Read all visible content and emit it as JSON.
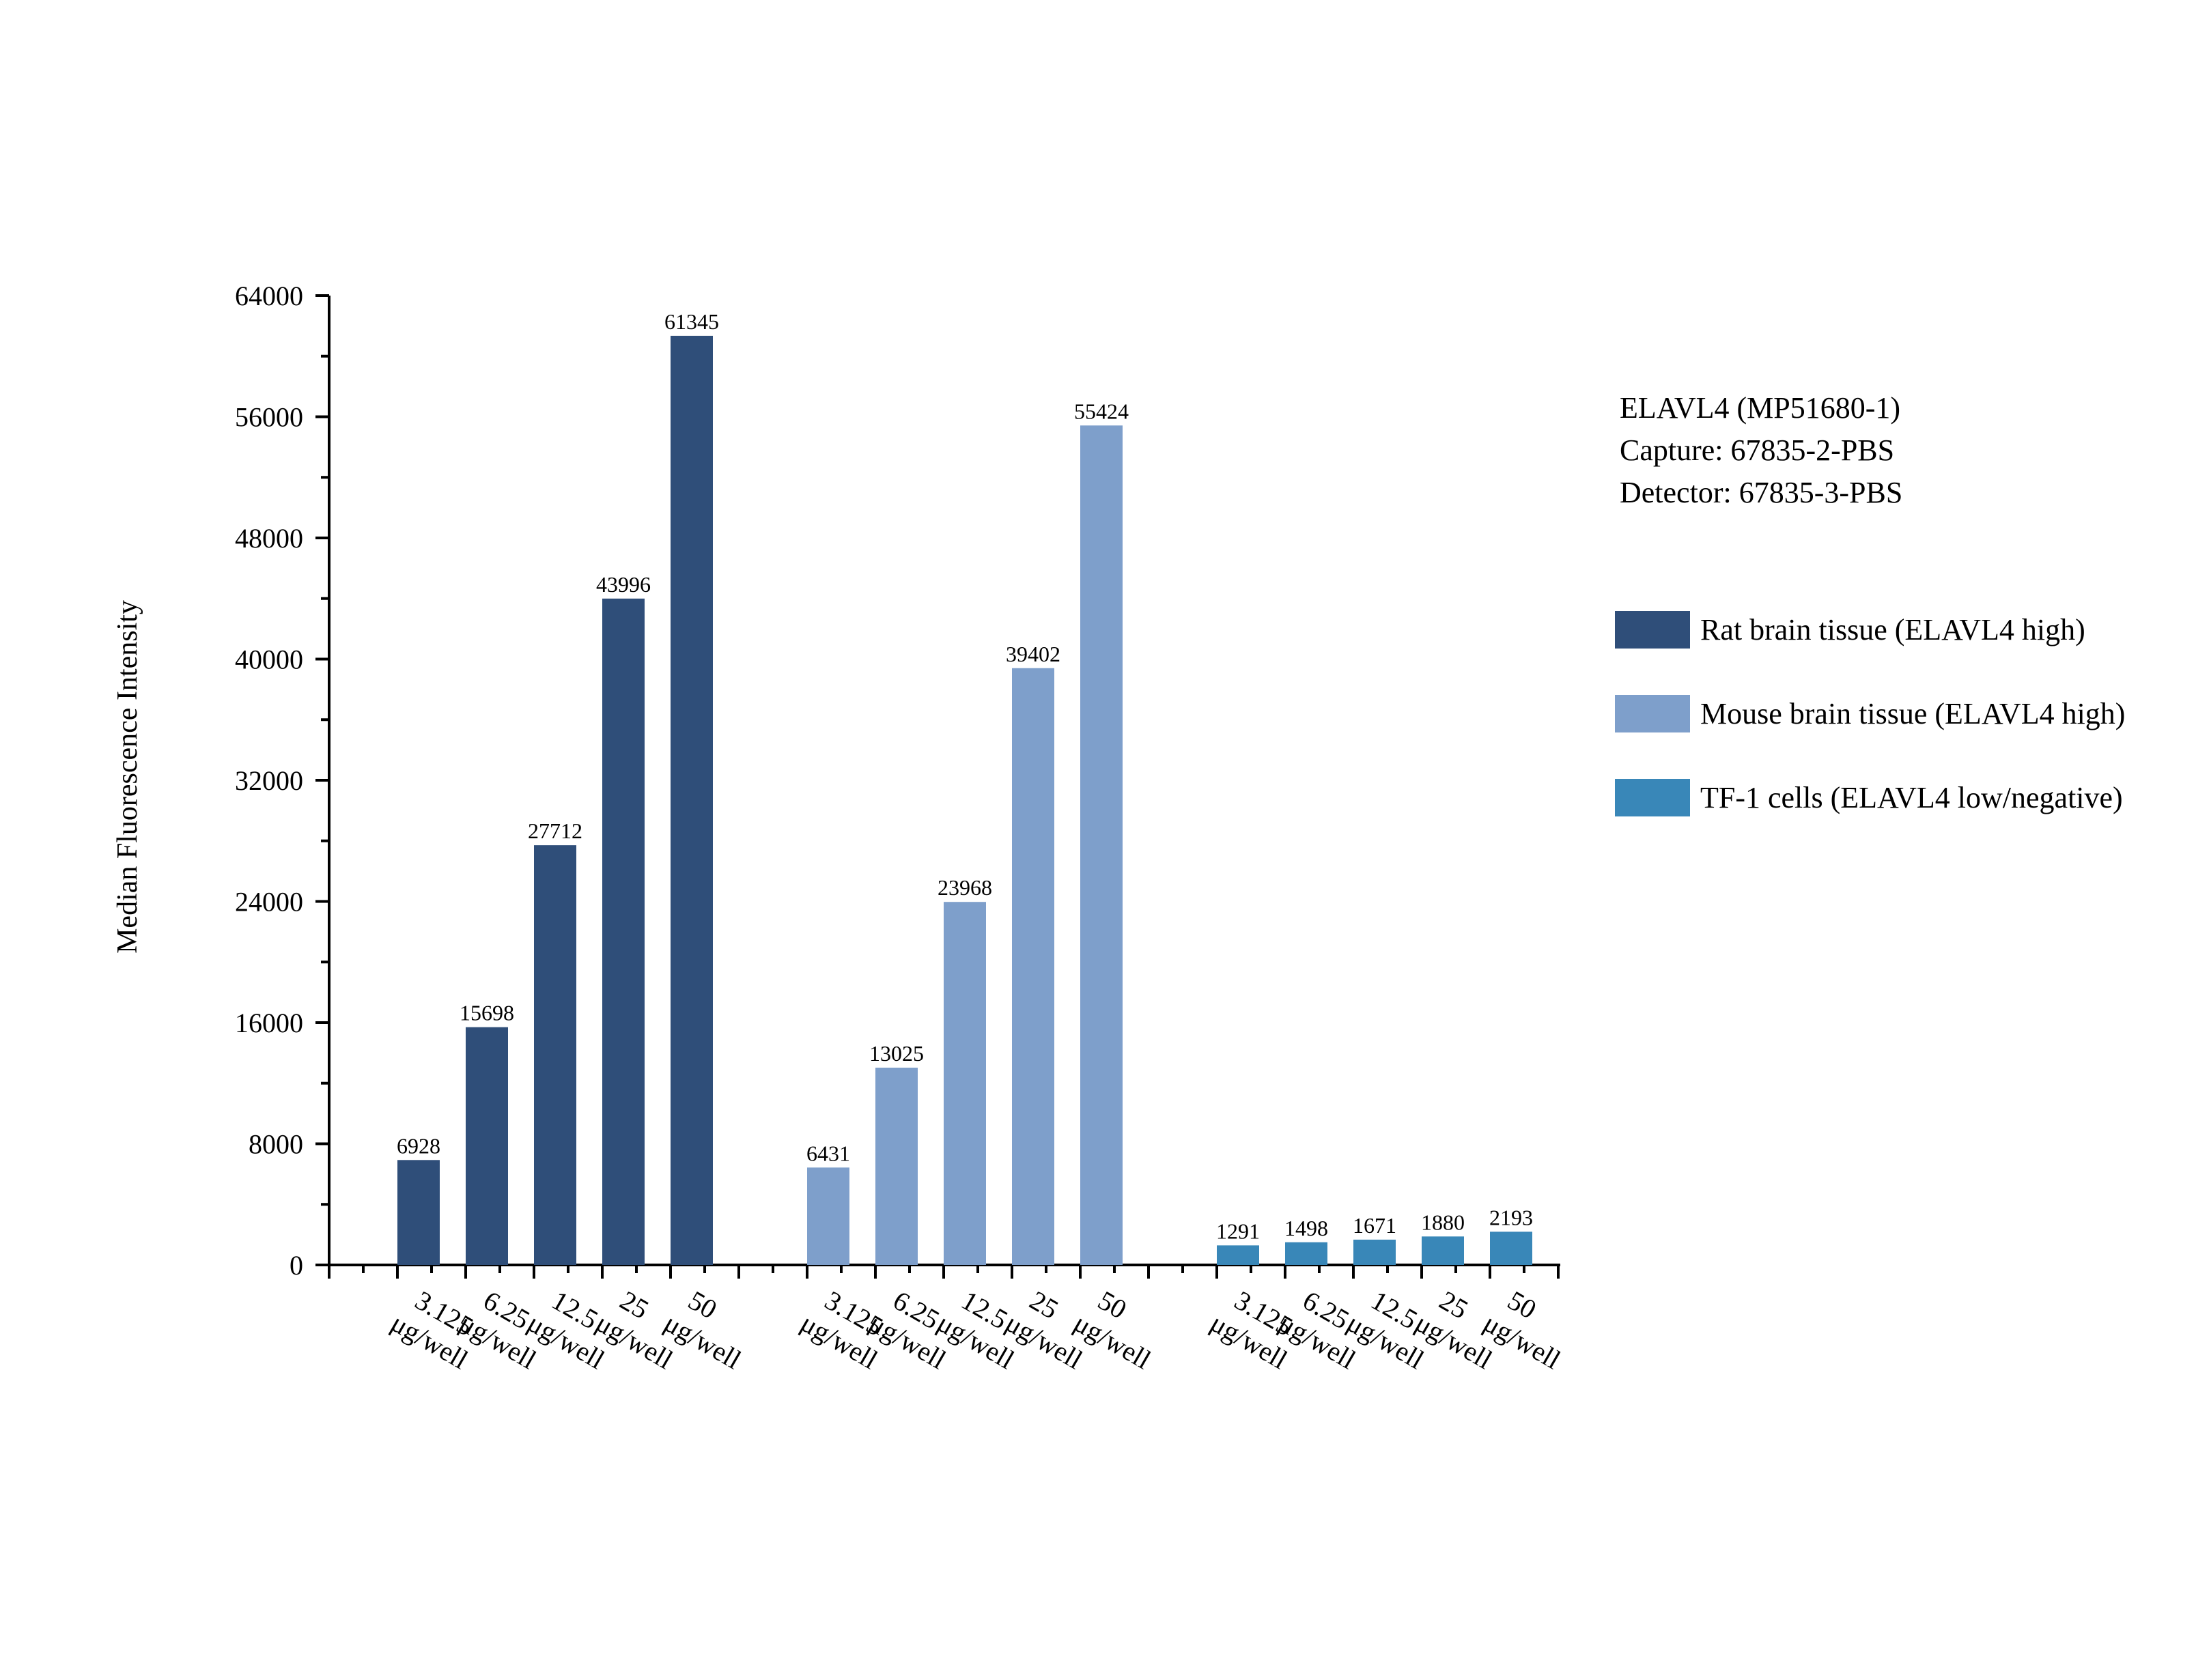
{
  "chart_data": {
    "type": "bar",
    "title": "",
    "ylabel": "Median Fluorescence Intensity",
    "xlabel": "",
    "ylim": [
      0,
      64000
    ],
    "yticks": [
      "0",
      "8000",
      "16000",
      "24000",
      "32000",
      "40000",
      "48000",
      "56000",
      "64000"
    ],
    "categories": [
      "3.125 μg/well",
      "6.25 μg/well",
      "12.5 μg/well",
      "25 μg/well",
      "50 μg/well"
    ],
    "category_lines": [
      [
        "3.125",
        "μg/well"
      ],
      [
        "6.25",
        "μg/well"
      ],
      [
        "12.5",
        "μg/well"
      ],
      [
        "25",
        "μg/well"
      ],
      [
        "50",
        "μg/well"
      ]
    ],
    "series": [
      {
        "name": "Rat brain tissue (ELAVL4 high)",
        "color": "#2f4e79",
        "values": [
          6928,
          15698,
          27712,
          43996,
          61345
        ]
      },
      {
        "name": "Mouse brain tissue (ELAVL4 high)",
        "color": "#7e9fcb",
        "values": [
          6431,
          13025,
          23968,
          39402,
          55424
        ]
      },
      {
        "name": "TF-1 cells (ELAVL4 low/negative)",
        "color": "#3987b8",
        "values": [
          1291,
          1498,
          1671,
          1880,
          2193
        ]
      }
    ],
    "annotation": [
      "ELAVL4 (MP51680-1)",
      "Capture: 67835-2-PBS",
      "Detector: 67835-3-PBS"
    ],
    "legend_position": "right",
    "grid": false
  }
}
